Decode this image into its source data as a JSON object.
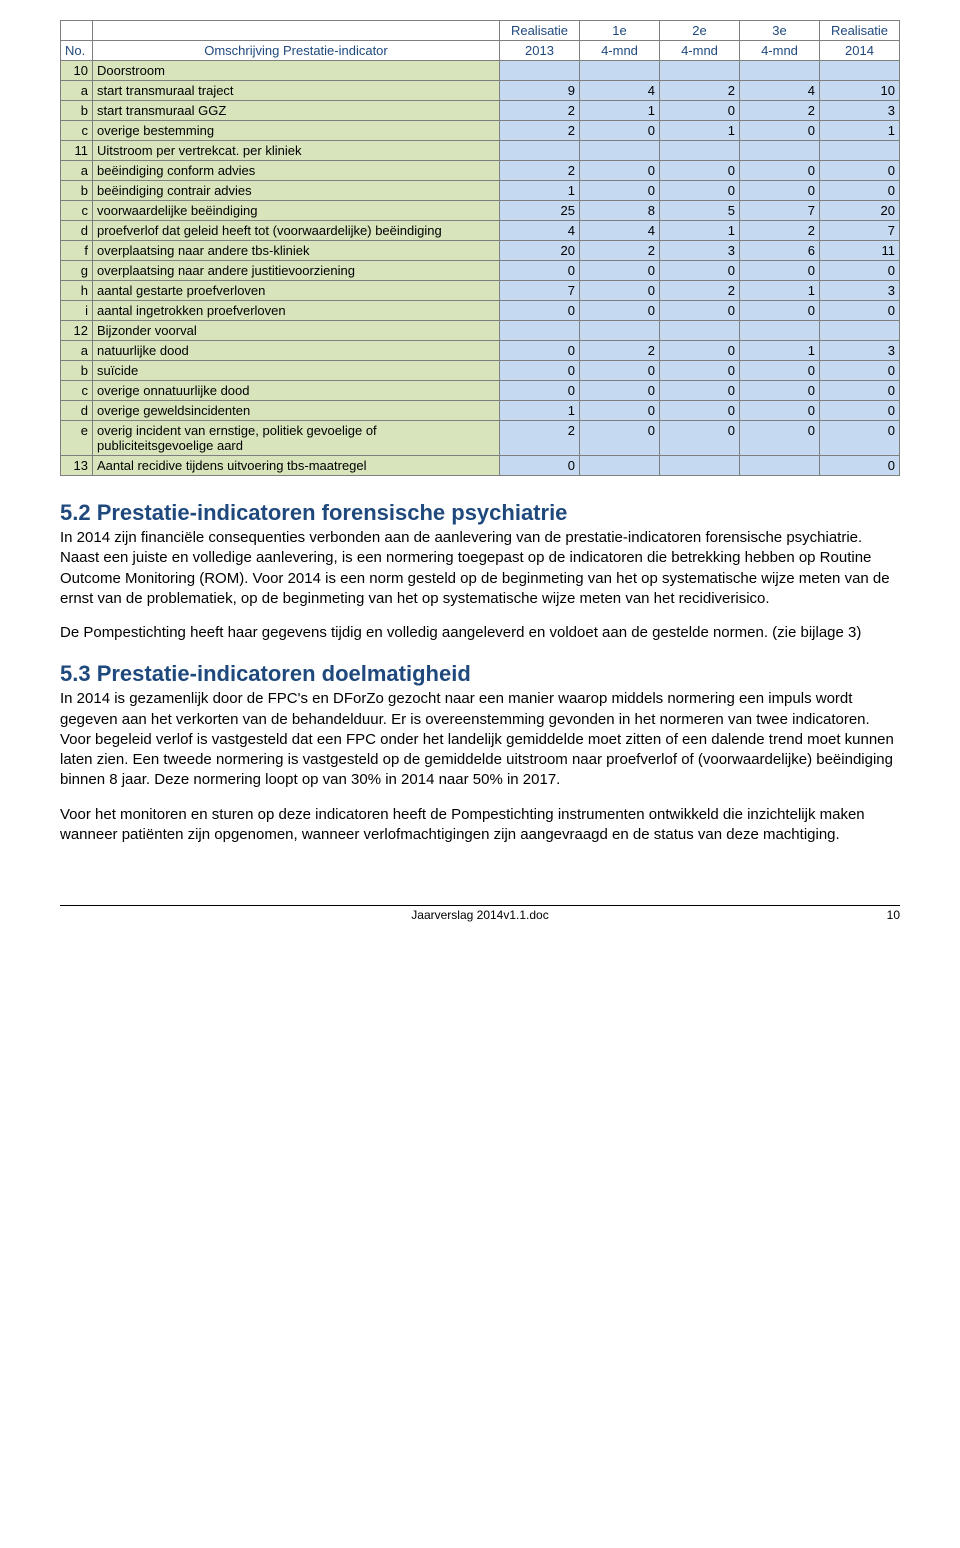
{
  "table": {
    "header1": {
      "c0": "",
      "c1": "",
      "c2": "Realisatie",
      "c3": "1e",
      "c4": "2e",
      "c5": "3e",
      "c6": "Realisatie"
    },
    "header2": {
      "c0": "No.",
      "c1": "Omschrijving Prestatie-indicator",
      "c2": "2013",
      "c3": "4-mnd",
      "c4": "4-mnd",
      "c5": "4-mnd",
      "c6": "2014"
    },
    "rows": [
      {
        "no": "10",
        "desc": "Doorstroom",
        "vals": [
          "",
          "",
          "",
          "",
          ""
        ],
        "section": true
      },
      {
        "no": "a",
        "desc": "start transmuraal traject",
        "vals": [
          "9",
          "4",
          "2",
          "4",
          "10"
        ]
      },
      {
        "no": "b",
        "desc": "start transmuraal GGZ",
        "vals": [
          "2",
          "1",
          "0",
          "2",
          "3"
        ]
      },
      {
        "no": "c",
        "desc": "overige bestemming",
        "vals": [
          "2",
          "0",
          "1",
          "0",
          "1"
        ]
      },
      {
        "no": "11",
        "desc": "Uitstroom per vertrekcat. per kliniek",
        "vals": [
          "",
          "",
          "",
          "",
          ""
        ],
        "section": true
      },
      {
        "no": "a",
        "desc": " beëindiging conform advies",
        "vals": [
          "2",
          "0",
          "0",
          "0",
          "0"
        ]
      },
      {
        "no": "b",
        "desc": "beëindiging contrair advies",
        "vals": [
          "1",
          "0",
          "0",
          "0",
          "0"
        ]
      },
      {
        "no": "c",
        "desc": "voorwaardelijke beëindiging",
        "vals": [
          "25",
          "8",
          "5",
          "7",
          "20"
        ]
      },
      {
        "no": "d",
        "desc": "proefverlof dat geleid heeft tot (voorwaardelijke) beëindiging",
        "vals": [
          "4",
          "4",
          "1",
          "2",
          "7"
        ]
      },
      {
        "no": "f",
        "desc": "overplaatsing naar andere tbs-kliniek",
        "vals": [
          "20",
          "2",
          "3",
          "6",
          "11"
        ]
      },
      {
        "no": "g",
        "desc": "overplaatsing naar andere justitievoorziening",
        "vals": [
          "0",
          "0",
          "0",
          "0",
          "0"
        ]
      },
      {
        "no": "h",
        "desc": "aantal gestarte proefverloven",
        "vals": [
          "7",
          "0",
          "2",
          "1",
          "3"
        ]
      },
      {
        "no": "i",
        "desc": "aantal ingetrokken proefverloven",
        "vals": [
          "0",
          "0",
          "0",
          "0",
          "0"
        ]
      },
      {
        "no": "12",
        "desc": "Bijzonder voorval",
        "vals": [
          "",
          "",
          "",
          "",
          ""
        ],
        "section": true
      },
      {
        "no": "a",
        "desc": "natuurlijke dood",
        "vals": [
          "0",
          "2",
          "0",
          "1",
          "3"
        ]
      },
      {
        "no": "b",
        "desc": "suïcide",
        "vals": [
          "0",
          "0",
          "0",
          "0",
          "0"
        ]
      },
      {
        "no": "c",
        "desc": "overige onnatuurlijke dood",
        "vals": [
          "0",
          "0",
          "0",
          "0",
          "0"
        ]
      },
      {
        "no": "d",
        "desc": "overige geweldsincidenten",
        "vals": [
          "1",
          "0",
          "0",
          "0",
          "0"
        ]
      },
      {
        "no": "e",
        "desc": "overig incident van ernstige, politiek gevoelige of publiciteitsgevoelige aard",
        "vals": [
          "2",
          "0",
          "0",
          "0",
          "0"
        ]
      },
      {
        "no": "13",
        "desc": "Aantal recidive tijdens uitvoering tbs-maatregel",
        "vals": [
          "0",
          "",
          "",
          "",
          "0"
        ]
      }
    ]
  },
  "section52": {
    "title": "5.2 Prestatie-indicatoren forensische psychiatrie",
    "p1": "In 2014 zijn financiële consequenties verbonden aan de aanlevering van de prestatie-indicatoren forensische psychiatrie. Naast een juiste en volledige aanlevering, is een normering toegepast op de indicatoren die betrekking hebben op Routine Outcome Monitoring (ROM). Voor 2014 is een norm gesteld op de beginmeting van het op systematische wijze meten van de ernst van de problematiek, op de beginmeting van het op systematische wijze meten van het recidiverisico.",
    "p2": "De Pompestichting heeft haar gegevens tijdig en volledig aangeleverd en voldoet aan de gestelde normen. (zie bijlage 3)"
  },
  "section53": {
    "title": "5.3 Prestatie-indicatoren doelmatigheid",
    "p1": "In 2014 is gezamenlijk door de FPC's en DForZo gezocht naar een manier waarop middels normering een impuls wordt gegeven aan het verkorten van de behandelduur. Er is overeenstemming gevonden in het normeren van twee indicatoren. Voor begeleid verlof is vastgesteld dat een FPC onder het landelijk gemiddelde moet zitten of een dalende trend moet kunnen laten zien. Een tweede normering is vastgesteld op de gemiddelde uitstroom naar proefverlof of (voorwaardelijke) beëindiging binnen 8 jaar. Deze normering loopt op van 30% in 2014 naar 50% in 2017.",
    "p2": "Voor het monitoren en sturen op deze indicatoren heeft de Pompestichting instrumenten ontwikkeld die inzichtelijk maken wanneer patiënten zijn opgenomen, wanneer verlofmachtigingen zijn aangevraagd en de status van deze machtiging."
  },
  "footer": {
    "center": "Jaarverslag 2014v1.1.doc",
    "page": "10"
  },
  "colors": {
    "header_text": "#1f497d",
    "green_bg": "#d8e4bc",
    "blue_bg": "#c5d9f1",
    "border": "#7f7f7f",
    "heading": "#1f497d"
  }
}
